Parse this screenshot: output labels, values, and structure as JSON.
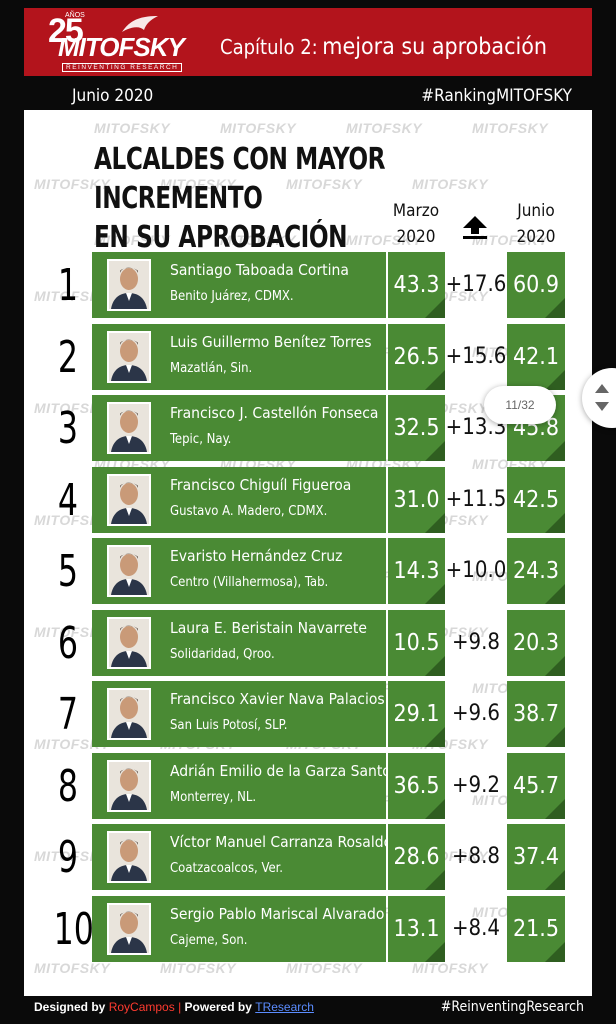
{
  "header": {
    "logo_number": "25",
    "logo_anos": "AÑOS",
    "logo_name": "MITOFSKY",
    "logo_tagline": "REINVENTING RESEARCH",
    "chapter_label": "Capítulo 2:",
    "chapter_title": "mejora su aprobación",
    "date": "Junio 2020",
    "hashtag": "#RankingMITOFSKY"
  },
  "watermark": "MITOFSKY",
  "title_line1": "ALCALDES CON MAYOR INCREMENTO",
  "title_line2": "EN SU APROBACIÓN",
  "columns": {
    "marzo_line1": "Marzo",
    "marzo_line2": "2020",
    "change_icon": "arrow-up-icon",
    "junio_line1": "Junio",
    "junio_line2": "2020"
  },
  "rows": [
    {
      "rank": "1",
      "name": "Santiago Taboada Cortina",
      "place": "Benito Juárez, CDMX.",
      "marzo": "43.3",
      "change": "+17.6",
      "junio": "60.9"
    },
    {
      "rank": "2",
      "name": "Luis Guillermo Benítez Torres",
      "place": "Mazatlán, Sin.",
      "marzo": "26.5",
      "change": "+15.6",
      "junio": "42.1"
    },
    {
      "rank": "3",
      "name": "Francisco J. Castellón Fonseca",
      "place": "Tepic, Nay.",
      "marzo": "32.5",
      "change": "+13.3",
      "junio": "45.8"
    },
    {
      "rank": "4",
      "name": "Francisco Chiguíl Figueroa",
      "place": "Gustavo A. Madero, CDMX.",
      "marzo": "31.0",
      "change": "+11.5",
      "junio": "42.5"
    },
    {
      "rank": "5",
      "name": "Evaristo Hernández Cruz",
      "place": "Centro (Villahermosa), Tab.",
      "marzo": "14.3",
      "change": "+10.0",
      "junio": "24.3"
    },
    {
      "rank": "6",
      "name": "Laura E. Beristain Navarrete",
      "place": "Solidaridad, Qroo.",
      "marzo": "10.5",
      "change": "+9.8",
      "junio": "20.3"
    },
    {
      "rank": "7",
      "name": "Francisco Xavier Nava Palacios",
      "place": "San Luis Potosí, SLP.",
      "marzo": "29.1",
      "change": "+9.6",
      "junio": "38.7"
    },
    {
      "rank": "8",
      "name": "Adrián Emilio de la Garza Santos",
      "place": "Monterrey, NL.",
      "marzo": "36.5",
      "change": "+9.2",
      "junio": "45.7"
    },
    {
      "rank": "9",
      "name": "Víctor Manuel Carranza Rosaldo",
      "place": "Coatzacoalcos, Ver.",
      "marzo": "28.6",
      "change": "+8.8",
      "junio": "37.4"
    },
    {
      "rank": "10",
      "name": "Sergio Pablo Mariscal Alvarado",
      "place": "Cajeme, Son.",
      "marzo": "13.1",
      "change": "+8.4",
      "junio": "21.5"
    }
  ],
  "footer": {
    "designed_by_label": "Designed by",
    "designer": "RoyCampos",
    "separator": "|",
    "powered_by_label": "Powered by",
    "powered_by": "TResearch",
    "hashtag": "#ReinventingResearch"
  },
  "viewer": {
    "page_indicator": "11/32",
    "scroll_icon": "scroll-updown-icon"
  },
  "colors": {
    "header_red": "#b3141c",
    "row_green": "#4a8a34",
    "row_green_dark": "#2f5e20"
  }
}
